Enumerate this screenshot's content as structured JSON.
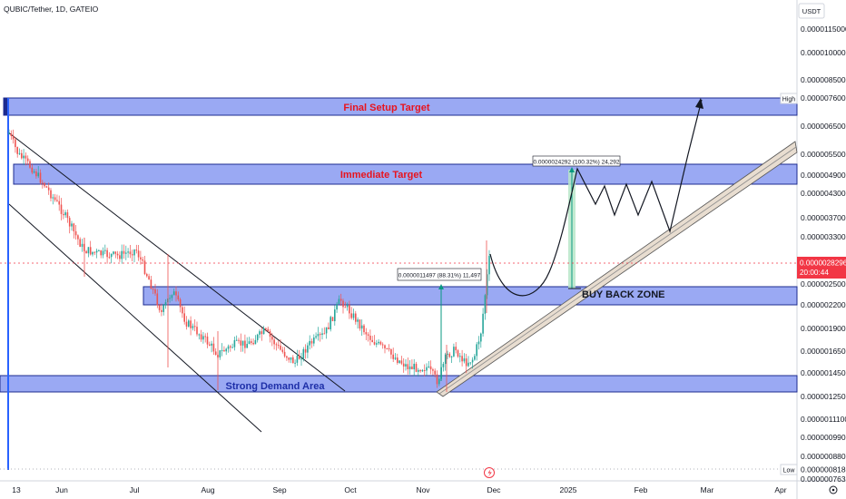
{
  "header": {
    "title": "QUBIC/Tether, 1D, GATEIO"
  },
  "price_axis": {
    "currency": "USDT",
    "ticks": [
      "0.0000115000",
      "0.0000100000",
      "0.0000085000",
      "0.0000076000",
      "0.0000065000",
      "0.0000055000",
      "0.0000049000",
      "0.0000043000",
      "0.0000037000",
      "0.0000033000",
      "0.0000025000",
      "0.0000022000",
      "0.0000019000",
      "0.0000016500",
      "0.0000014500",
      "0.0000012500",
      "0.0000011100",
      "0.0000009900",
      "0.0000008800",
      "0.0000008180",
      "0.0000007630"
    ],
    "high_label": "High",
    "high_value": "0.0000076000",
    "low_label": "Low",
    "low_value": "0.0000008180",
    "current_price": "0.0000028296",
    "countdown": "20:00:44"
  },
  "time_axis": {
    "labels": [
      "13",
      "Jun",
      "Jul",
      "Aug",
      "Sep",
      "Oct",
      "Nov",
      "Dec",
      "2025",
      "Feb",
      "Mar",
      "Apr"
    ]
  },
  "zones": {
    "final_target": "Final Setup Target",
    "immediate_target": "Immediate Target",
    "buy_back": "BUY BACK ZONE",
    "demand": "Strong Demand Area"
  },
  "measures": {
    "first": "0.0000011497 (88.31%) 11,497",
    "second": "0.0000024292 (100.32%) 24,292"
  },
  "colors": {
    "zone_fill": "#9aa9f3",
    "zone_stroke": "#1c2b8f",
    "bull": "#26a69a",
    "bear": "#ef5350",
    "price_tag": "#f23645",
    "zone_text_red": "#e8141e",
    "zone_text_blue": "#1e2fa8"
  },
  "chart_data": {
    "type": "candlestick",
    "title": "QUBIC/Tether, 1D, GATEIO",
    "y_scale": "log",
    "ylim": [
      7.63e-07,
      1.3e-05
    ],
    "x_range": [
      "May 13",
      "Apr"
    ],
    "series": [
      {
        "name": "QUBIC/Tether",
        "trend": [
          {
            "x": "May 13",
            "y": 6e-06
          },
          {
            "x": "Jun",
            "y": 3.1e-06
          },
          {
            "x": "Jul",
            "y": 2.4e-06
          },
          {
            "x": "Aug",
            "y": 1.6e-06
          },
          {
            "x": "Sep",
            "y": 1.5e-06
          },
          {
            "x": "Oct",
            "y": 2.2e-06
          },
          {
            "x": "Nov",
            "y": 1.4e-06
          },
          {
            "x": "Nov 25",
            "y": 1.6e-06
          },
          {
            "x": "Dec",
            "y": 2.8296e-06
          }
        ]
      }
    ],
    "zones": [
      {
        "label": "Final Setup Target",
        "from": 6.9e-06,
        "to": 8e-06
      },
      {
        "label": "Immediate Target",
        "from": 4.3e-06,
        "to": 5e-06
      },
      {
        "label": "BUY BACK ZONE",
        "from": 2.1e-06,
        "to": 2.4e-06
      },
      {
        "label": "Strong Demand Area",
        "from": 1.2e-06,
        "to": 1.3e-06
      }
    ]
  }
}
